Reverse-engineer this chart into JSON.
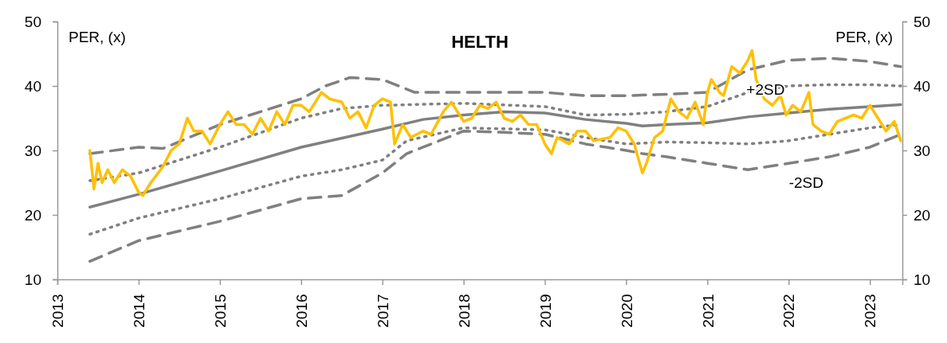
{
  "chart_data": {
    "type": "line",
    "title": "HELTH",
    "ylabel": "PER, (x)",
    "y2label": "PER, (x)",
    "xlim": [
      2013,
      2023.4
    ],
    "xticks": [
      2013,
      2014,
      2015,
      2016,
      2017,
      2018,
      2019,
      2020,
      2021,
      2022,
      2023
    ],
    "ylim": [
      10,
      50
    ],
    "yticks": [
      10,
      20,
      30,
      40,
      50
    ],
    "y2lim": [
      10,
      50
    ],
    "y2ticks": [
      10,
      20,
      30,
      40,
      50
    ],
    "annotations": [
      {
        "text": "+2SD",
        "x": 2021.5,
        "y": 42.5
      },
      {
        "text": "-2SD",
        "x": 2022,
        "y": 28
      }
    ],
    "series": [
      {
        "color": "#ffc000",
        "line_style": "solid",
        "x": [
          2013.4,
          2013.45,
          2013.5,
          2013.55,
          2013.62,
          2013.7,
          2013.8,
          2013.9,
          2014,
          2014.05,
          2014.15,
          2014.3,
          2014.4,
          2014.5,
          2014.6,
          2014.68,
          2014.78,
          2014.88,
          2015,
          2015.1,
          2015.2,
          2015.3,
          2015.4,
          2015.5,
          2015.6,
          2015.7,
          2015.8,
          2015.9,
          2016,
          2016.1,
          2016.25,
          2016.35,
          2016.5,
          2016.6,
          2016.7,
          2016.8,
          2016.9,
          2017,
          2017.1,
          2017.15,
          2017.25,
          2017.35,
          2017.5,
          2017.6,
          2017.75,
          2017.85,
          2017.95,
          2018,
          2018.1,
          2018.2,
          2018.3,
          2018.4,
          2018.5,
          2018.6,
          2018.7,
          2018.8,
          2018.9,
          2019,
          2019.08,
          2019.15,
          2019.3,
          2019.4,
          2019.5,
          2019.6,
          2019.8,
          2019.9,
          2020,
          2020.1,
          2020.2,
          2020.25,
          2020.35,
          2020.45,
          2020.55,
          2020.65,
          2020.75,
          2020.85,
          2020.95,
          2021,
          2021.05,
          2021.15,
          2021.2,
          2021.3,
          2021.4,
          2021.5,
          2021.55,
          2021.6,
          2021.7,
          2021.8,
          2021.9,
          2021.97,
          2022.05,
          2022.15,
          2022.25,
          2022.3,
          2022.4,
          2022.5,
          2022.6,
          2022.7,
          2022.8,
          2022.9,
          2023,
          2023.1,
          2023.2,
          2023.3,
          2023.38
        ],
        "values": [
          30,
          24,
          28,
          25,
          27,
          25,
          27,
          26,
          23.5,
          23,
          25,
          27.5,
          30,
          31,
          35,
          33,
          33,
          31,
          34,
          36,
          34,
          34,
          32.5,
          35,
          33,
          36,
          34,
          37,
          37,
          36,
          39,
          38,
          37.5,
          35,
          36,
          33.5,
          37,
          38,
          37.5,
          31,
          34,
          32,
          33,
          32.5,
          36,
          37.5,
          35.5,
          34.5,
          35,
          37,
          36.5,
          37.5,
          35,
          34.5,
          35.5,
          34,
          34,
          31,
          29.5,
          32,
          31,
          33,
          33,
          31.5,
          32,
          33.5,
          33,
          31,
          26.5,
          28,
          32,
          33,
          38,
          36,
          35,
          37.5,
          34,
          39,
          41,
          39,
          38.5,
          43,
          42,
          44,
          45.5,
          41,
          38,
          37,
          38.5,
          35.5,
          37,
          36,
          39,
          34,
          33,
          32.5,
          34.5,
          35,
          35.5,
          35,
          37,
          35,
          33,
          34.5,
          31.5
        ]
      },
      {
        "color": "#808080",
        "line_style": "solid",
        "x": [
          2013.4,
          2014,
          2015,
          2016,
          2017,
          2017.5,
          2018,
          2018.5,
          2019,
          2019.5,
          2020,
          2020.2,
          2020.5,
          2021,
          2021.5,
          2022,
          2022.5,
          2023,
          2023.38
        ],
        "values": [
          21.2,
          23.2,
          26.8,
          30.5,
          33.3,
          34.8,
          35.5,
          36,
          35.8,
          34.8,
          34.2,
          33.8,
          34,
          34.3,
          35.2,
          35.8,
          36.4,
          36.8,
          37.1
        ]
      },
      {
        "color": "#808080",
        "line_style": "dotted",
        "x": [
          2013.4,
          2014,
          2015,
          2016,
          2016.5,
          2017,
          2018,
          2019,
          2019.5,
          2020,
          2020.5,
          2021,
          2021.5,
          2022,
          2022.5,
          2023,
          2023.38
        ],
        "values": [
          25.3,
          26.5,
          30.5,
          35,
          36.5,
          37,
          37.3,
          36.8,
          35.5,
          35.6,
          36,
          36.8,
          39,
          40,
          40.2,
          40.2,
          40
        ]
      },
      {
        "color": "#808080",
        "line_style": "dotted",
        "x": [
          2013.4,
          2014,
          2015,
          2016,
          2016.5,
          2017,
          2017.3,
          2018,
          2019,
          2019.5,
          2020,
          2020.5,
          2021,
          2021.5,
          2022,
          2022.5,
          2023,
          2023.38
        ],
        "values": [
          17,
          19.5,
          22.5,
          26,
          27,
          28.5,
          31.5,
          33.5,
          33.2,
          32,
          31,
          31.3,
          31.2,
          31,
          31.5,
          32.5,
          33.5,
          34
        ]
      },
      {
        "color": "#808080",
        "line_style": "dashed",
        "x": [
          2013.4,
          2014,
          2014.3,
          2015,
          2016,
          2016.3,
          2016.6,
          2017,
          2017.4,
          2018,
          2019,
          2019.5,
          2020,
          2020.5,
          2021,
          2021.5,
          2022,
          2022.5,
          2023,
          2023.38
        ],
        "values": [
          29.5,
          30.5,
          30.3,
          34,
          38,
          40,
          41.3,
          41,
          39,
          39,
          39,
          38.5,
          38.5,
          38.7,
          39,
          42.5,
          44,
          44.3,
          43.8,
          43
        ]
      },
      {
        "color": "#808080",
        "line_style": "dashed",
        "x": [
          2013.4,
          2014,
          2015,
          2016,
          2016.5,
          2017,
          2017.3,
          2018,
          2018.5,
          2019,
          2019.5,
          2020,
          2020.2,
          2020.5,
          2021,
          2021.5,
          2022,
          2022.5,
          2023,
          2023.38
        ],
        "values": [
          12.8,
          16,
          19,
          22.5,
          23,
          26.5,
          29.5,
          33,
          32.8,
          32.5,
          31,
          30,
          29.5,
          29,
          28,
          27,
          28,
          29,
          30.5,
          32.5
        ]
      }
    ]
  }
}
